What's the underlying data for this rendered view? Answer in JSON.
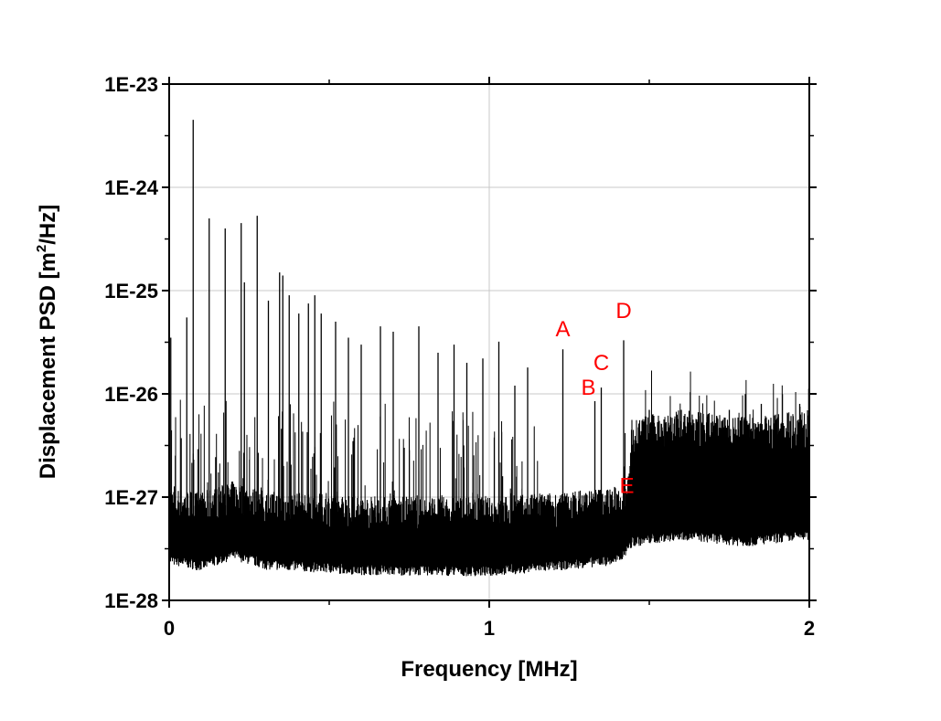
{
  "chart_data": {
    "type": "line",
    "xlabel": "Frequency [MHz]",
    "ylabel_main": "Displacement PSD [m",
    "ylabel_sup": "2",
    "ylabel_tail": "/Hz]",
    "xlim": [
      0,
      2
    ],
    "ylim": [
      1e-28,
      1e-23
    ],
    "y_scale": "log",
    "grid": true,
    "x_ticks": [
      {
        "value": 0,
        "label": "0"
      },
      {
        "value": 1,
        "label": "1"
      },
      {
        "value": 2,
        "label": "2"
      }
    ],
    "y_ticks": [
      {
        "value": 1e-28,
        "label": "1E-28"
      },
      {
        "value": 1e-27,
        "label": "1E-27"
      },
      {
        "value": 1e-26,
        "label": "1E-26"
      },
      {
        "value": 1e-25,
        "label": "1E-25"
      },
      {
        "value": 1e-24,
        "label": "1E-24"
      },
      {
        "value": 1e-23,
        "label": "1E-23"
      }
    ],
    "series_color": "#000000",
    "annotation_color": "#ff0000",
    "noise_floor": [
      {
        "x": 0.0,
        "y": 4e-28
      },
      {
        "x": 0.1,
        "y": 3.5e-28
      },
      {
        "x": 0.2,
        "y": 4.5e-28
      },
      {
        "x": 0.3,
        "y": 3.6e-28
      },
      {
        "x": 0.6,
        "y": 3.2e-28
      },
      {
        "x": 1.0,
        "y": 3.1e-28
      },
      {
        "x": 1.2,
        "y": 3.5e-28
      },
      {
        "x": 1.4,
        "y": 4e-28
      },
      {
        "x": 1.45,
        "y": 6e-28
      },
      {
        "x": 1.6,
        "y": 7e-28
      },
      {
        "x": 1.8,
        "y": 6e-28
      },
      {
        "x": 2.0,
        "y": 7e-28
      }
    ],
    "peaks": [
      {
        "x": 0.005,
        "y": 3.5e-26
      },
      {
        "x": 0.055,
        "y": 5.5e-26
      },
      {
        "x": 0.075,
        "y": 4.5e-24
      },
      {
        "x": 0.125,
        "y": 5e-25
      },
      {
        "x": 0.175,
        "y": 4e-25
      },
      {
        "x": 0.225,
        "y": 4.5e-25
      },
      {
        "x": 0.235,
        "y": 1.2e-25
      },
      {
        "x": 0.275,
        "y": 5.3e-25
      },
      {
        "x": 0.31,
        "y": 8e-26
      },
      {
        "x": 0.345,
        "y": 1.5e-25
      },
      {
        "x": 0.355,
        "y": 1.4e-25
      },
      {
        "x": 0.375,
        "y": 9e-26
      },
      {
        "x": 0.405,
        "y": 6e-26
      },
      {
        "x": 0.435,
        "y": 7.5e-26
      },
      {
        "x": 0.455,
        "y": 9e-26
      },
      {
        "x": 0.475,
        "y": 6e-26
      },
      {
        "x": 0.52,
        "y": 5e-26
      },
      {
        "x": 0.56,
        "y": 3.5e-26
      },
      {
        "x": 0.6,
        "y": 3e-26
      },
      {
        "x": 0.66,
        "y": 4.5e-26
      },
      {
        "x": 0.7,
        "y": 4e-26
      },
      {
        "x": 0.78,
        "y": 4.5e-26
      },
      {
        "x": 0.84,
        "y": 2.5e-26
      },
      {
        "x": 0.89,
        "y": 3e-26
      },
      {
        "x": 0.93,
        "y": 2e-26
      },
      {
        "x": 0.98,
        "y": 2.2e-26
      },
      {
        "x": 1.03,
        "y": 3.2e-26
      },
      {
        "x": 1.08,
        "y": 1.2e-26
      },
      {
        "x": 1.12,
        "y": 1.8e-26
      },
      {
        "x": 1.23,
        "y": 2.7e-26
      },
      {
        "x": 1.33,
        "y": 8.5e-27
      },
      {
        "x": 1.35,
        "y": 1.15e-26
      },
      {
        "x": 1.42,
        "y": 3.3e-26
      },
      {
        "x": 1.44,
        "y": 2e-27
      },
      {
        "x": 1.5,
        "y": 7e-27
      },
      {
        "x": 1.6,
        "y": 7e-27
      },
      {
        "x": 1.75,
        "y": 7e-27
      },
      {
        "x": 1.85,
        "y": 8e-27
      },
      {
        "x": 1.97,
        "y": 8e-27
      }
    ],
    "annotations": [
      {
        "text": "A",
        "x": 1.23,
        "y": 3.6e-26
      },
      {
        "text": "B",
        "x": 1.31,
        "y": 9.8e-27
      },
      {
        "text": "C",
        "x": 1.35,
        "y": 1.7e-26
      },
      {
        "text": "D",
        "x": 1.42,
        "y": 5.4e-26
      },
      {
        "text": "E",
        "x": 1.43,
        "y": 1.1e-27
      }
    ]
  }
}
